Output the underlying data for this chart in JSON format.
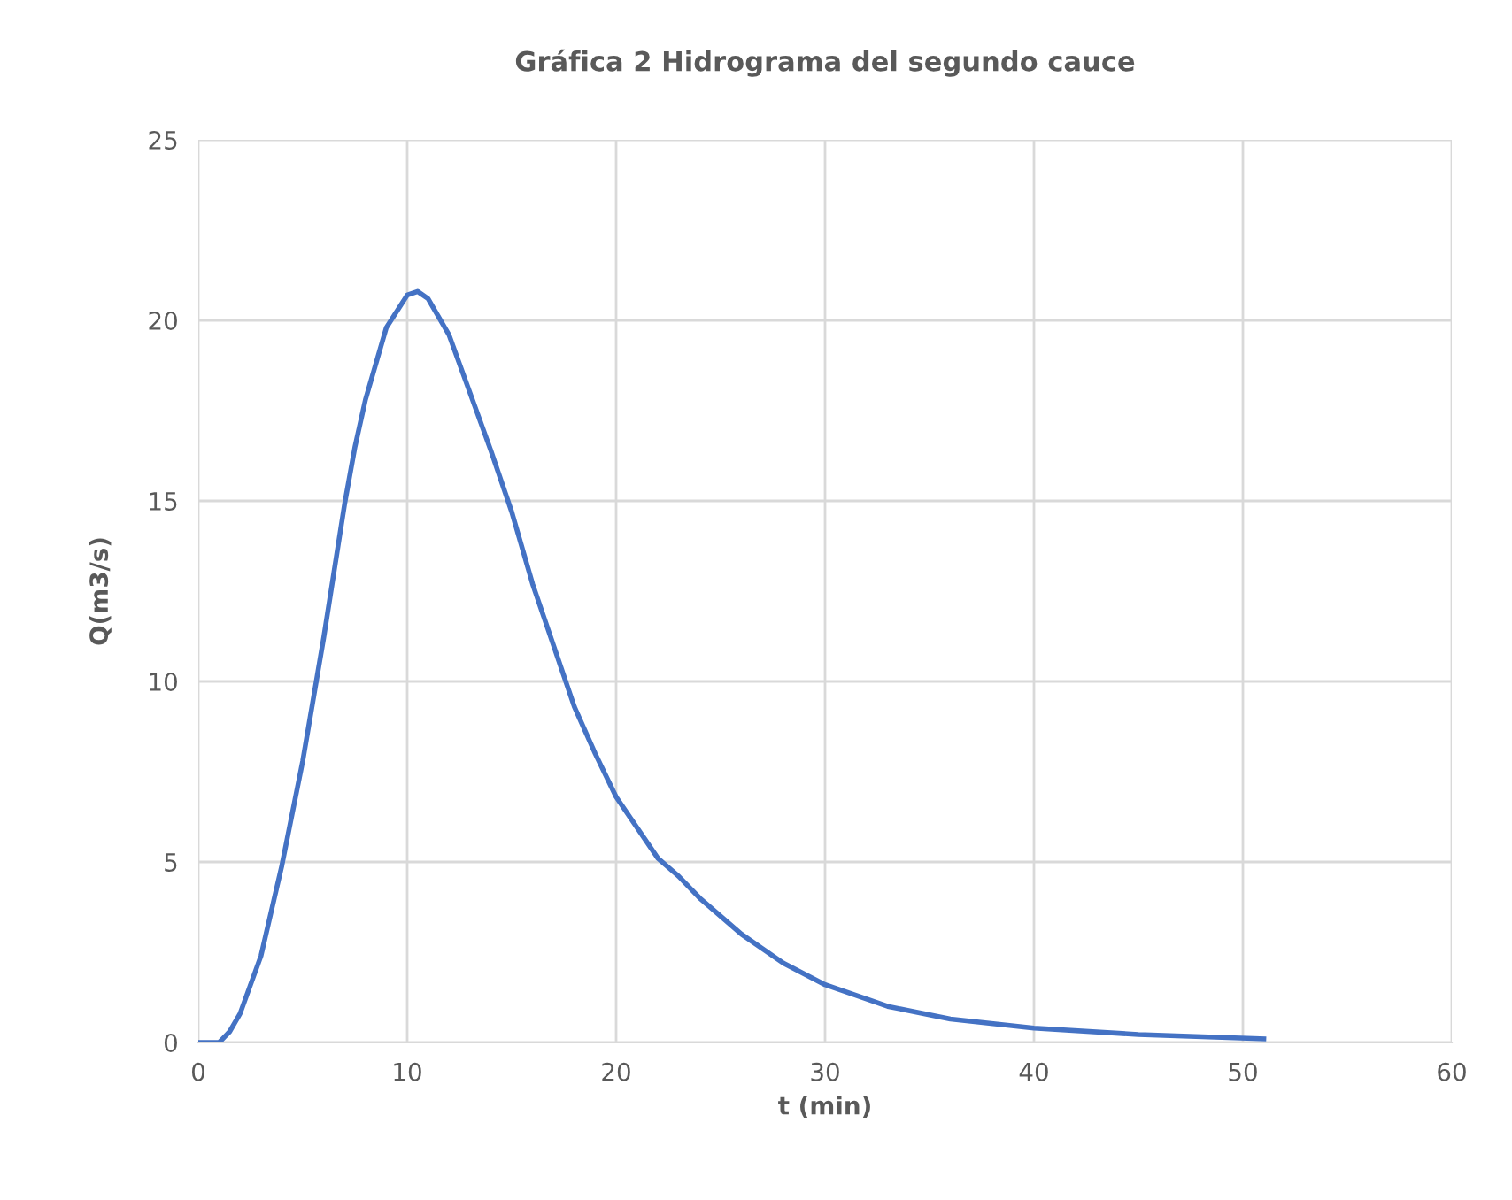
{
  "chart_data": {
    "type": "line",
    "title": "Gráfica 2 Hidrograma del segundo cauce",
    "xlabel": "t (min)",
    "ylabel": "Q(m3/s)",
    "series": [
      {
        "color": "#4472c4",
        "x": [
          0,
          1,
          1.5,
          2,
          3,
          4,
          5,
          6,
          7,
          7.5,
          8,
          9,
          10,
          10.5,
          11,
          12,
          13,
          14,
          15,
          16,
          17,
          18,
          19,
          20,
          22,
          23,
          24,
          26,
          28,
          30,
          33,
          36,
          40,
          45,
          51
        ],
        "values": [
          0,
          0,
          0.3,
          0.8,
          2.4,
          4.9,
          7.8,
          11.2,
          14.9,
          16.5,
          17.8,
          19.8,
          20.7,
          20.8,
          20.6,
          19.6,
          18.0,
          16.4,
          14.7,
          12.7,
          11.0,
          9.3,
          8.0,
          6.8,
          5.1,
          4.6,
          4.0,
          3.0,
          2.2,
          1.6,
          1.0,
          0.65,
          0.4,
          0.22,
          0.1
        ]
      }
    ],
    "xlim": [
      0,
      60
    ],
    "xticks": [
      0,
      10,
      20,
      30,
      40,
      50,
      60
    ],
    "ylim": [
      0,
      25
    ],
    "yticks": [
      0,
      5,
      10,
      15,
      20,
      25
    ],
    "grid": true,
    "marker": "none",
    "line_style": "solid"
  }
}
